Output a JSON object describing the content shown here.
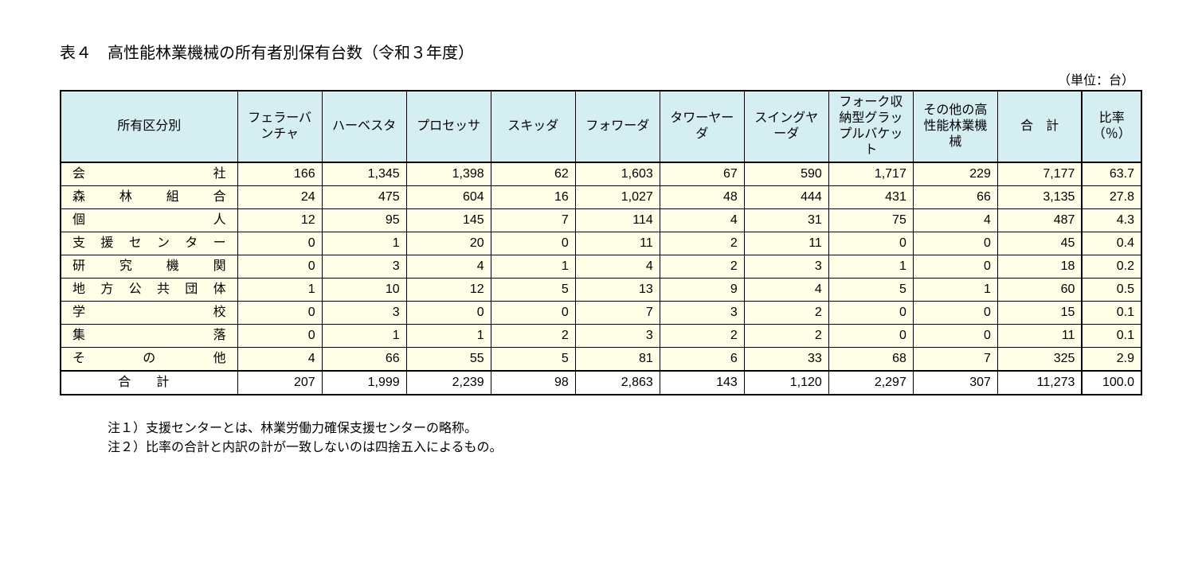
{
  "title": "表４　高性能林業機械の所有者別保有台数（令和３年度）",
  "unit": "（単位：台）",
  "columns": [
    "所有区分別",
    "フェラーバンチャ",
    "ハーベスタ",
    "プロセッサ",
    "スキッダ",
    "フォワーダ",
    "タワーヤーダ",
    "スイングヤーダ",
    "フォーク収納型グラップルバケット",
    "その他の高性能林業機械",
    "合　計",
    "比率（％）"
  ],
  "rows": [
    {
      "label": "会社",
      "v": [
        "166",
        "1,345",
        "1,398",
        "62",
        "1,603",
        "67",
        "590",
        "1,717",
        "229",
        "7,177",
        "63.7"
      ]
    },
    {
      "label": "森林組合",
      "v": [
        "24",
        "475",
        "604",
        "16",
        "1,027",
        "48",
        "444",
        "431",
        "66",
        "3,135",
        "27.8"
      ]
    },
    {
      "label": "個人",
      "v": [
        "12",
        "95",
        "145",
        "7",
        "114",
        "4",
        "31",
        "75",
        "4",
        "487",
        "4.3"
      ]
    },
    {
      "label": "支援センター",
      "v": [
        "0",
        "1",
        "20",
        "0",
        "11",
        "2",
        "11",
        "0",
        "0",
        "45",
        "0.4"
      ]
    },
    {
      "label": "研究機関",
      "v": [
        "0",
        "3",
        "4",
        "1",
        "4",
        "2",
        "3",
        "1",
        "0",
        "18",
        "0.2"
      ]
    },
    {
      "label": "地方公共団体",
      "v": [
        "1",
        "10",
        "12",
        "5",
        "13",
        "9",
        "4",
        "5",
        "1",
        "60",
        "0.5"
      ]
    },
    {
      "label": "学校",
      "v": [
        "0",
        "3",
        "0",
        "0",
        "7",
        "3",
        "2",
        "0",
        "0",
        "15",
        "0.1"
      ]
    },
    {
      "label": "集落",
      "v": [
        "0",
        "1",
        "1",
        "2",
        "3",
        "2",
        "2",
        "0",
        "0",
        "11",
        "0.1"
      ]
    },
    {
      "label": "その他",
      "v": [
        "4",
        "66",
        "55",
        "5",
        "81",
        "6",
        "33",
        "68",
        "7",
        "325",
        "2.9"
      ]
    }
  ],
  "total": {
    "label": "合計",
    "v": [
      "207",
      "1,999",
      "2,239",
      "98",
      "2,863",
      "143",
      "1,120",
      "2,297",
      "307",
      "11,273",
      "100.0"
    ]
  },
  "notes": [
    "注１）支援センターとは、林業労働力確保支援センターの略称。",
    "注２）比率の合計と内訳の計が一致しないのは四捨五入によるもの。"
  ],
  "style": {
    "header_bg": "#d4eef2",
    "data_bg": "#ffffe8",
    "border_color": "#000000",
    "font_family": "MS PGothic",
    "title_fontsize": 20,
    "cell_fontsize": 16
  }
}
